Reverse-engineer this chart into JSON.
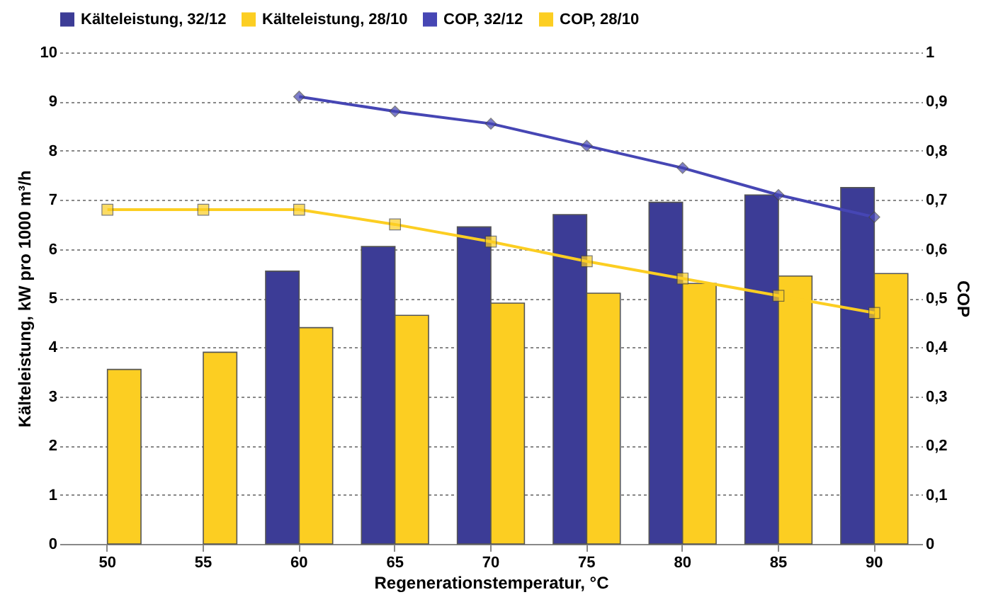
{
  "chart_data": {
    "type": "bar",
    "xlabel": "Regenerationstemperatur, °C",
    "ylabel": "Kälteleistung, kW pro 1000 m³/h",
    "y2label": "COP",
    "categories": [
      "50",
      "55",
      "60",
      "65",
      "70",
      "75",
      "80",
      "85",
      "90"
    ],
    "series": [
      {
        "name": "Kälteleistung, 32/12",
        "color": "#3c3c96",
        "values": [
          null,
          null,
          5.55,
          6.05,
          6.45,
          6.7,
          6.95,
          7.1,
          7.25
        ]
      },
      {
        "name": "Kälteleistung, 28/10",
        "color": "#fcce22",
        "values": [
          3.55,
          3.9,
          4.4,
          4.65,
          4.9,
          5.1,
          5.3,
          5.45,
          5.5
        ]
      },
      {
        "name": "COP, 32/12",
        "type": "line",
        "axis": "y2",
        "marker": "diamond",
        "color": "#4646b4",
        "values": [
          null,
          null,
          0.91,
          0.88,
          0.855,
          0.81,
          0.765,
          0.71,
          0.665
        ]
      },
      {
        "name": "COP, 28/10",
        "type": "line",
        "axis": "y2",
        "marker": "square",
        "color": "#fcce22",
        "values": [
          0.68,
          0.68,
          0.68,
          0.65,
          0.615,
          0.575,
          0.54,
          0.505,
          0.47
        ]
      }
    ],
    "ylim": [
      0,
      10
    ],
    "yticks": [
      0,
      1,
      2,
      3,
      4,
      5,
      6,
      7,
      8,
      9,
      10
    ],
    "y2lim": [
      0,
      1
    ],
    "y2ticks": [
      {
        "value": 0,
        "label": "0"
      },
      {
        "value": 0.1,
        "label": "0,1"
      },
      {
        "value": 0.2,
        "label": "0,2"
      },
      {
        "value": 0.3,
        "label": "0,3"
      },
      {
        "value": 0.4,
        "label": "0,4"
      },
      {
        "value": 0.5,
        "label": "0,5"
      },
      {
        "value": 0.6,
        "label": "0,6"
      },
      {
        "value": 0.7,
        "label": "0,7"
      },
      {
        "value": 0.8,
        "label": "0,8"
      },
      {
        "value": 0.9,
        "label": "0,9"
      },
      {
        "value": 1,
        "label": "1"
      }
    ],
    "grid": "y",
    "legend": "top"
  }
}
